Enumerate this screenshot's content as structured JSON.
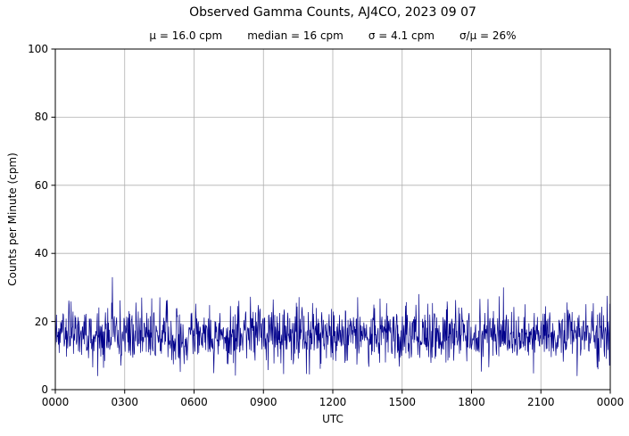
{
  "header": {
    "title": "Observed Gamma Counts, AJ4CO, 2023 09 07",
    "stats": [
      "μ = 16.0 cpm",
      "median = 16 cpm",
      "σ = 4.1 cpm",
      "σ/μ = 26%"
    ]
  },
  "chart_data": {
    "type": "line",
    "title": "Observed Gamma Counts, AJ4CO, 2023 09 07",
    "subtitle_stats": {
      "mean_cpm": 16.0,
      "median_cpm": 16,
      "sigma_cpm": 4.1,
      "sigma_over_mu_pct": 26
    },
    "xlabel": "UTC",
    "ylabel": "Counts per Minute (cpm)",
    "x_ticks": [
      "0000",
      "0300",
      "0600",
      "0900",
      "1200",
      "1500",
      "1800",
      "2100",
      "0000"
    ],
    "y_ticks": [
      0,
      20,
      40,
      60,
      80,
      100
    ],
    "xlim_minutes": [
      0,
      1440
    ],
    "ylim": [
      0,
      100
    ],
    "grid": true,
    "legend": "none",
    "line_color": "#00008b",
    "grid_color": "#b0b0b0",
    "series_description": "Per-minute gamma count rate over 24 h; stationary noise about the mean",
    "series_stats": {
      "n_points": 1440,
      "mean": 16.0,
      "sigma": 4.1,
      "approx_min": 4,
      "approx_max": 33
    },
    "notable_peaks": [
      {
        "minute": 148,
        "value": 33
      },
      {
        "minute": 1162,
        "value": 30
      }
    ]
  }
}
